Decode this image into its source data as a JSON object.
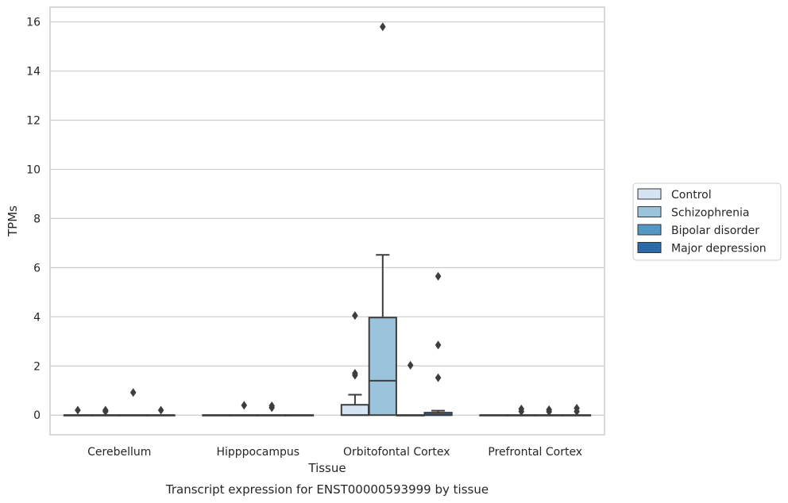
{
  "chart_data": {
    "type": "box",
    "caption": "Transcript expression for ENST00000593999 by tissue",
    "xlabel": "Tissue",
    "ylabel": "TPMs",
    "ylim": [
      -0.8,
      16.6
    ],
    "yticks": [
      0,
      2,
      4,
      6,
      8,
      10,
      12,
      14,
      16
    ],
    "grid": true,
    "legend_position": "right",
    "categories": [
      "Cerebellum",
      "Hipppocampus",
      "Orbitofontal Cortex",
      "Prefrontal Cortex"
    ],
    "series": [
      {
        "name": "Control",
        "color": "#d6e3f0",
        "boxes": [
          {
            "q1": 0,
            "median": 0,
            "q3": 0,
            "whisker_low": 0,
            "whisker_high": 0,
            "outliers": [
              0.2
            ]
          },
          {
            "q1": 0,
            "median": 0,
            "q3": 0,
            "whisker_low": 0,
            "whisker_high": 0,
            "outliers": []
          },
          {
            "q1": 0,
            "median": 0,
            "q3": 0.42,
            "whisker_low": 0,
            "whisker_high": 0.83,
            "outliers": [
              4.05,
              1.7,
              1.62
            ]
          },
          {
            "q1": 0,
            "median": 0,
            "q3": 0,
            "whisker_low": 0,
            "whisker_high": 0,
            "outliers": []
          }
        ]
      },
      {
        "name": "Schizophrenia",
        "color": "#9bc3dc",
        "boxes": [
          {
            "q1": 0,
            "median": 0,
            "q3": 0,
            "whisker_low": 0,
            "whisker_high": 0,
            "outliers": [
              0.2,
              0.15
            ]
          },
          {
            "q1": 0,
            "median": 0,
            "q3": 0,
            "whisker_low": 0,
            "whisker_high": 0,
            "outliers": [
              0.4
            ]
          },
          {
            "q1": 0,
            "median": 1.4,
            "q3": 3.97,
            "whisker_low": 0,
            "whisker_high": 6.52,
            "outliers": [
              15.8
            ]
          },
          {
            "q1": 0,
            "median": 0,
            "q3": 0,
            "whisker_low": 0,
            "whisker_high": 0,
            "outliers": [
              0.25,
              0.15
            ]
          }
        ]
      },
      {
        "name": "Bipolar disorder",
        "color": "#5496c4",
        "boxes": [
          {
            "q1": 0,
            "median": 0,
            "q3": 0,
            "whisker_low": 0,
            "whisker_high": 0,
            "outliers": [
              0.92
            ]
          },
          {
            "q1": 0,
            "median": 0,
            "q3": 0,
            "whisker_low": 0,
            "whisker_high": 0,
            "outliers": [
              0.38,
              0.3
            ]
          },
          {
            "q1": 0,
            "median": 0,
            "q3": 0,
            "whisker_low": 0,
            "whisker_high": 0,
            "outliers": [
              2.03
            ]
          },
          {
            "q1": 0,
            "median": 0,
            "q3": 0,
            "whisker_low": 0,
            "whisker_high": 0,
            "outliers": [
              0.22,
              0.14
            ]
          }
        ]
      },
      {
        "name": "Major depression",
        "color": "#2a6aa7",
        "boxes": [
          {
            "q1": 0,
            "median": 0,
            "q3": 0,
            "whisker_low": 0,
            "whisker_high": 0,
            "outliers": [
              0.2
            ]
          },
          {
            "q1": 0,
            "median": 0,
            "q3": 0,
            "whisker_low": 0,
            "whisker_high": 0,
            "outliers": []
          },
          {
            "q1": 0,
            "median": 0,
            "q3": 0.1,
            "whisker_low": 0,
            "whisker_high": 0.18,
            "outliers": [
              5.65,
              2.85,
              1.52
            ]
          },
          {
            "q1": 0,
            "median": 0,
            "q3": 0,
            "whisker_low": 0,
            "whisker_high": 0,
            "outliers": [
              0.28,
              0.15
            ]
          }
        ]
      }
    ]
  }
}
